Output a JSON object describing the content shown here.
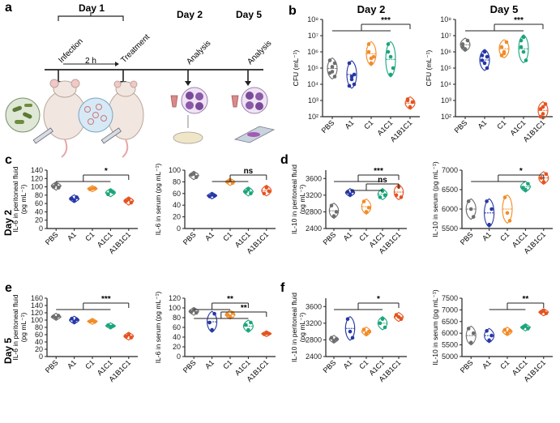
{
  "panels": {
    "a": {
      "letter": "a",
      "day1": "Day 1",
      "day2": "Day 2",
      "day5": "Day 5",
      "infection": "Infection",
      "treatment": "Treatment",
      "interval": "2 h",
      "analysis1": "Analysis",
      "analysis2": "Analysis"
    },
    "b": {
      "letter": "b"
    },
    "c": {
      "letter": "c",
      "row_label": "Day 2"
    },
    "d": {
      "letter": "d"
    },
    "e": {
      "letter": "e",
      "row_label": "Day 5"
    },
    "f": {
      "letter": "f"
    }
  },
  "group_colors": [
    "#6e6e6e",
    "#2637a6",
    "#f28c28",
    "#1aa57a",
    "#e5531f"
  ],
  "chart_data": [
    {
      "id": "b-day2",
      "type": "violin",
      "title": "Day 2",
      "ylabel": "CFU (mL⁻¹)",
      "yscale": "log",
      "ylim": [
        100,
        100000000
      ],
      "yticks": [
        100,
        1000,
        10000,
        100000,
        1000000,
        10000000,
        100000000
      ],
      "yticklabels": [
        "10²",
        "10³",
        "10⁴",
        "10⁵",
        "10⁶",
        "10⁷",
        "10⁸"
      ],
      "categories": [
        "PBS",
        "A1",
        "C1",
        "A1C1",
        "A1B1C1"
      ],
      "values": [
        [
          300000,
          120000,
          30000,
          50000,
          60000,
          200000
        ],
        [
          200000,
          30000,
          10000,
          8000,
          20000,
          40000
        ],
        [
          1000000,
          200000,
          500000,
          3000000,
          400000
        ],
        [
          3000000,
          500000,
          100000,
          1000000,
          40000
        ],
        [
          1000,
          400,
          800,
          1200
        ]
      ],
      "significance": {
        "label": "***",
        "bracket": [
          "PBS",
          "A1",
          "C1",
          "A1C1"
        ],
        "vs": "A1B1C1"
      }
    },
    {
      "id": "b-day5",
      "type": "violin",
      "title": "Day 5",
      "ylabel": "CFU (mL⁻¹)",
      "yscale": "log",
      "ylim": [
        100,
        100000000
      ],
      "yticks": [
        100,
        1000,
        10000,
        100000,
        1000000,
        10000000,
        100000000
      ],
      "yticklabels": [
        "10²",
        "10³",
        "10⁴",
        "10⁵",
        "10⁶",
        "10⁷",
        "10⁸"
      ],
      "categories": [
        "PBS",
        "A1",
        "C1",
        "A1C1",
        "A1B1C1"
      ],
      "values": [
        [
          3000000,
          1500000,
          5000000,
          2000000
        ],
        [
          600000,
          200000,
          100000,
          300000,
          1000000,
          500000
        ],
        [
          2000000,
          800000,
          4000000,
          600000,
          1000000
        ],
        [
          5000000,
          1000000,
          300000,
          2000000,
          8000000
        ],
        [
          300,
          150,
          600,
          100,
          400
        ]
      ],
      "significance": {
        "label": "***",
        "bracket": [
          "PBS",
          "A1",
          "C1",
          "A1C1"
        ],
        "vs": "A1B1C1"
      }
    },
    {
      "id": "c-peritoneal",
      "type": "violin",
      "ylabel": "IL-6 in peritoneal fluid",
      "ylabel2": "(pg mL⁻¹)",
      "ylim": [
        0,
        140
      ],
      "yticks": [
        0,
        20,
        40,
        60,
        80,
        100,
        120,
        140
      ],
      "categories": [
        "PBS",
        "A1",
        "C1",
        "A1C1",
        "A1B1C1"
      ],
      "values": [
        [
          100,
          106,
          98
        ],
        [
          72,
          68,
          75
        ],
        [
          94,
          96,
          97
        ],
        [
          82,
          90,
          87
        ],
        [
          66,
          70,
          62
        ]
      ],
      "significance": {
        "label": "*",
        "bracket": [
          "PBS",
          "A1",
          "C1",
          "A1C1"
        ],
        "vs": "A1B1C1"
      }
    },
    {
      "id": "c-serum",
      "type": "violin",
      "ylabel": "IL-6 in serum (pg mL⁻¹)",
      "ylim": [
        0,
        100
      ],
      "yticks": [
        0,
        20,
        40,
        60,
        80,
        100
      ],
      "categories": [
        "PBS",
        "A1",
        "C1",
        "A1C1",
        "A1B1C1"
      ],
      "values": [
        [
          92,
          94,
          88
        ],
        [
          55,
          58,
          56
        ],
        [
          80,
          82,
          78
        ],
        [
          63,
          67,
          60
        ],
        [
          60,
          70,
          64
        ]
      ],
      "significance": {
        "label": "ns",
        "bracket": [
          "A1",
          "C1",
          "A1C1"
        ],
        "vs": "A1B1C1"
      }
    },
    {
      "id": "d-peritoneal",
      "type": "violin",
      "ylabel": "IL-10 in peritoneal fluid",
      "ylabel2": "(pg mL⁻¹)",
      "ylim": [
        2400,
        3800
      ],
      "yticks": [
        2400,
        2800,
        3200,
        3600
      ],
      "categories": [
        "PBS",
        "A1",
        "C1",
        "A1C1",
        "A1B1C1"
      ],
      "values": [
        [
          2950,
          2700,
          2800
        ],
        [
          3280,
          3220,
          3300
        ],
        [
          3050,
          2800,
          2900
        ],
        [
          3150,
          3300,
          3200
        ],
        [
          3200,
          3400,
          3150
        ]
      ],
      "significance": [
        {
          "label": "***",
          "bracket": [
            "PBS",
            "A1",
            "C1",
            "A1C1"
          ],
          "vs": "A1B1C1"
        },
        {
          "label": "ns",
          "bracket": [
            "A1",
            "C1",
            "A1C1"
          ],
          "vs": "A1B1C1"
        }
      ]
    },
    {
      "id": "d-serum",
      "type": "violin",
      "ylabel": "IL-10 in serum (pg mL⁻¹)",
      "ylim": [
        5500,
        7000
      ],
      "yticks": [
        5500,
        6000,
        6500,
        7000
      ],
      "categories": [
        "PBS",
        "A1",
        "C1",
        "A1C1",
        "A1B1C1"
      ],
      "values": [
        [
          6200,
          6000,
          5800
        ],
        [
          6200,
          5600,
          6000
        ],
        [
          6300,
          5900,
          5700
        ],
        [
          6550,
          6500,
          6650
        ],
        [
          6800,
          6700,
          6900
        ]
      ],
      "significance": {
        "label": "*",
        "bracket": [
          "PBS",
          "A1",
          "C1",
          "A1C1"
        ],
        "vs": "A1B1C1"
      }
    },
    {
      "id": "e-peritoneal",
      "type": "violin",
      "ylabel": "IL-6 in peritoneal fluid",
      "ylabel2": "(pg mL⁻¹)",
      "ylim": [
        0,
        160
      ],
      "yticks": [
        0,
        20,
        40,
        60,
        80,
        100,
        120,
        140,
        160
      ],
      "categories": [
        "PBS",
        "A1",
        "C1",
        "A1C1",
        "A1B1C1"
      ],
      "values": [
        [
          110,
          106,
          112
        ],
        [
          104,
          96,
          102
        ],
        [
          96,
          98,
          95
        ],
        [
          86,
          82,
          84
        ],
        [
          55,
          60,
          52
        ]
      ],
      "significance": {
        "label": "***",
        "bracket": [
          "PBS",
          "A1",
          "C1",
          "A1C1"
        ],
        "vs": "A1B1C1"
      }
    },
    {
      "id": "e-serum",
      "type": "violin",
      "ylabel": "IL-6 in serum (pg mL⁻¹)",
      "ylim": [
        0,
        120
      ],
      "yticks": [
        0,
        20,
        40,
        60,
        80,
        100,
        120
      ],
      "categories": [
        "PBS",
        "A1",
        "C1",
        "A1C1",
        "A1B1C1"
      ],
      "values": [
        [
          92,
          96,
          90
        ],
        [
          70,
          55,
          88
        ],
        [
          86,
          82,
          90
        ],
        [
          65,
          55,
          70
        ],
        [
          46,
          48,
          47
        ]
      ],
      "significance": [
        {
          "label": "**",
          "bracket": [
            "PBS",
            "A1",
            "C1"
          ],
          "vs": "A1C1"
        },
        {
          "label": "**",
          "bracket": [
            "PBS",
            "A1",
            "C1",
            "A1C1"
          ],
          "vs": "A1B1C1"
        }
      ]
    },
    {
      "id": "f-peritoneal",
      "type": "violin",
      "ylabel": "IL-10 in peritoneal fluid",
      "ylabel2": "(pg mL⁻¹)",
      "ylim": [
        2400,
        3800
      ],
      "yticks": [
        2400,
        2800,
        3200,
        3600
      ],
      "categories": [
        "PBS",
        "A1",
        "C1",
        "A1C1",
        "A1B1C1"
      ],
      "values": [
        [
          2850,
          2780,
          2820
        ],
        [
          3300,
          3000,
          2850
        ],
        [
          3050,
          2950,
          3000
        ],
        [
          3200,
          3300,
          3100
        ],
        [
          3400,
          3350,
          3300
        ]
      ],
      "significance": [
        {
          "label": "*",
          "bracket": [
            "PBS",
            "A1",
            "C1",
            "A1C1"
          ],
          "vs": "A1B1C1"
        }
      ]
    },
    {
      "id": "f-serum",
      "type": "violin",
      "ylabel": "IL-10 in serum (pg mL⁻¹)",
      "ylim": [
        5000,
        7500
      ],
      "yticks": [
        5000,
        5500,
        6000,
        6500,
        7000,
        7500
      ],
      "categories": [
        "PBS",
        "A1",
        "C1",
        "A1C1",
        "A1B1C1"
      ],
      "values": [
        [
          6200,
          5600,
          6000
        ],
        [
          6100,
          5700,
          5900
        ],
        [
          6150,
          6000,
          6100
        ],
        [
          6250,
          6300,
          6200
        ],
        [
          6900,
          6950,
          6850
        ]
      ],
      "significance": {
        "label": "**",
        "bracket": [
          "A1",
          "C1",
          "A1C1"
        ],
        "vs": "A1B1C1"
      }
    }
  ]
}
